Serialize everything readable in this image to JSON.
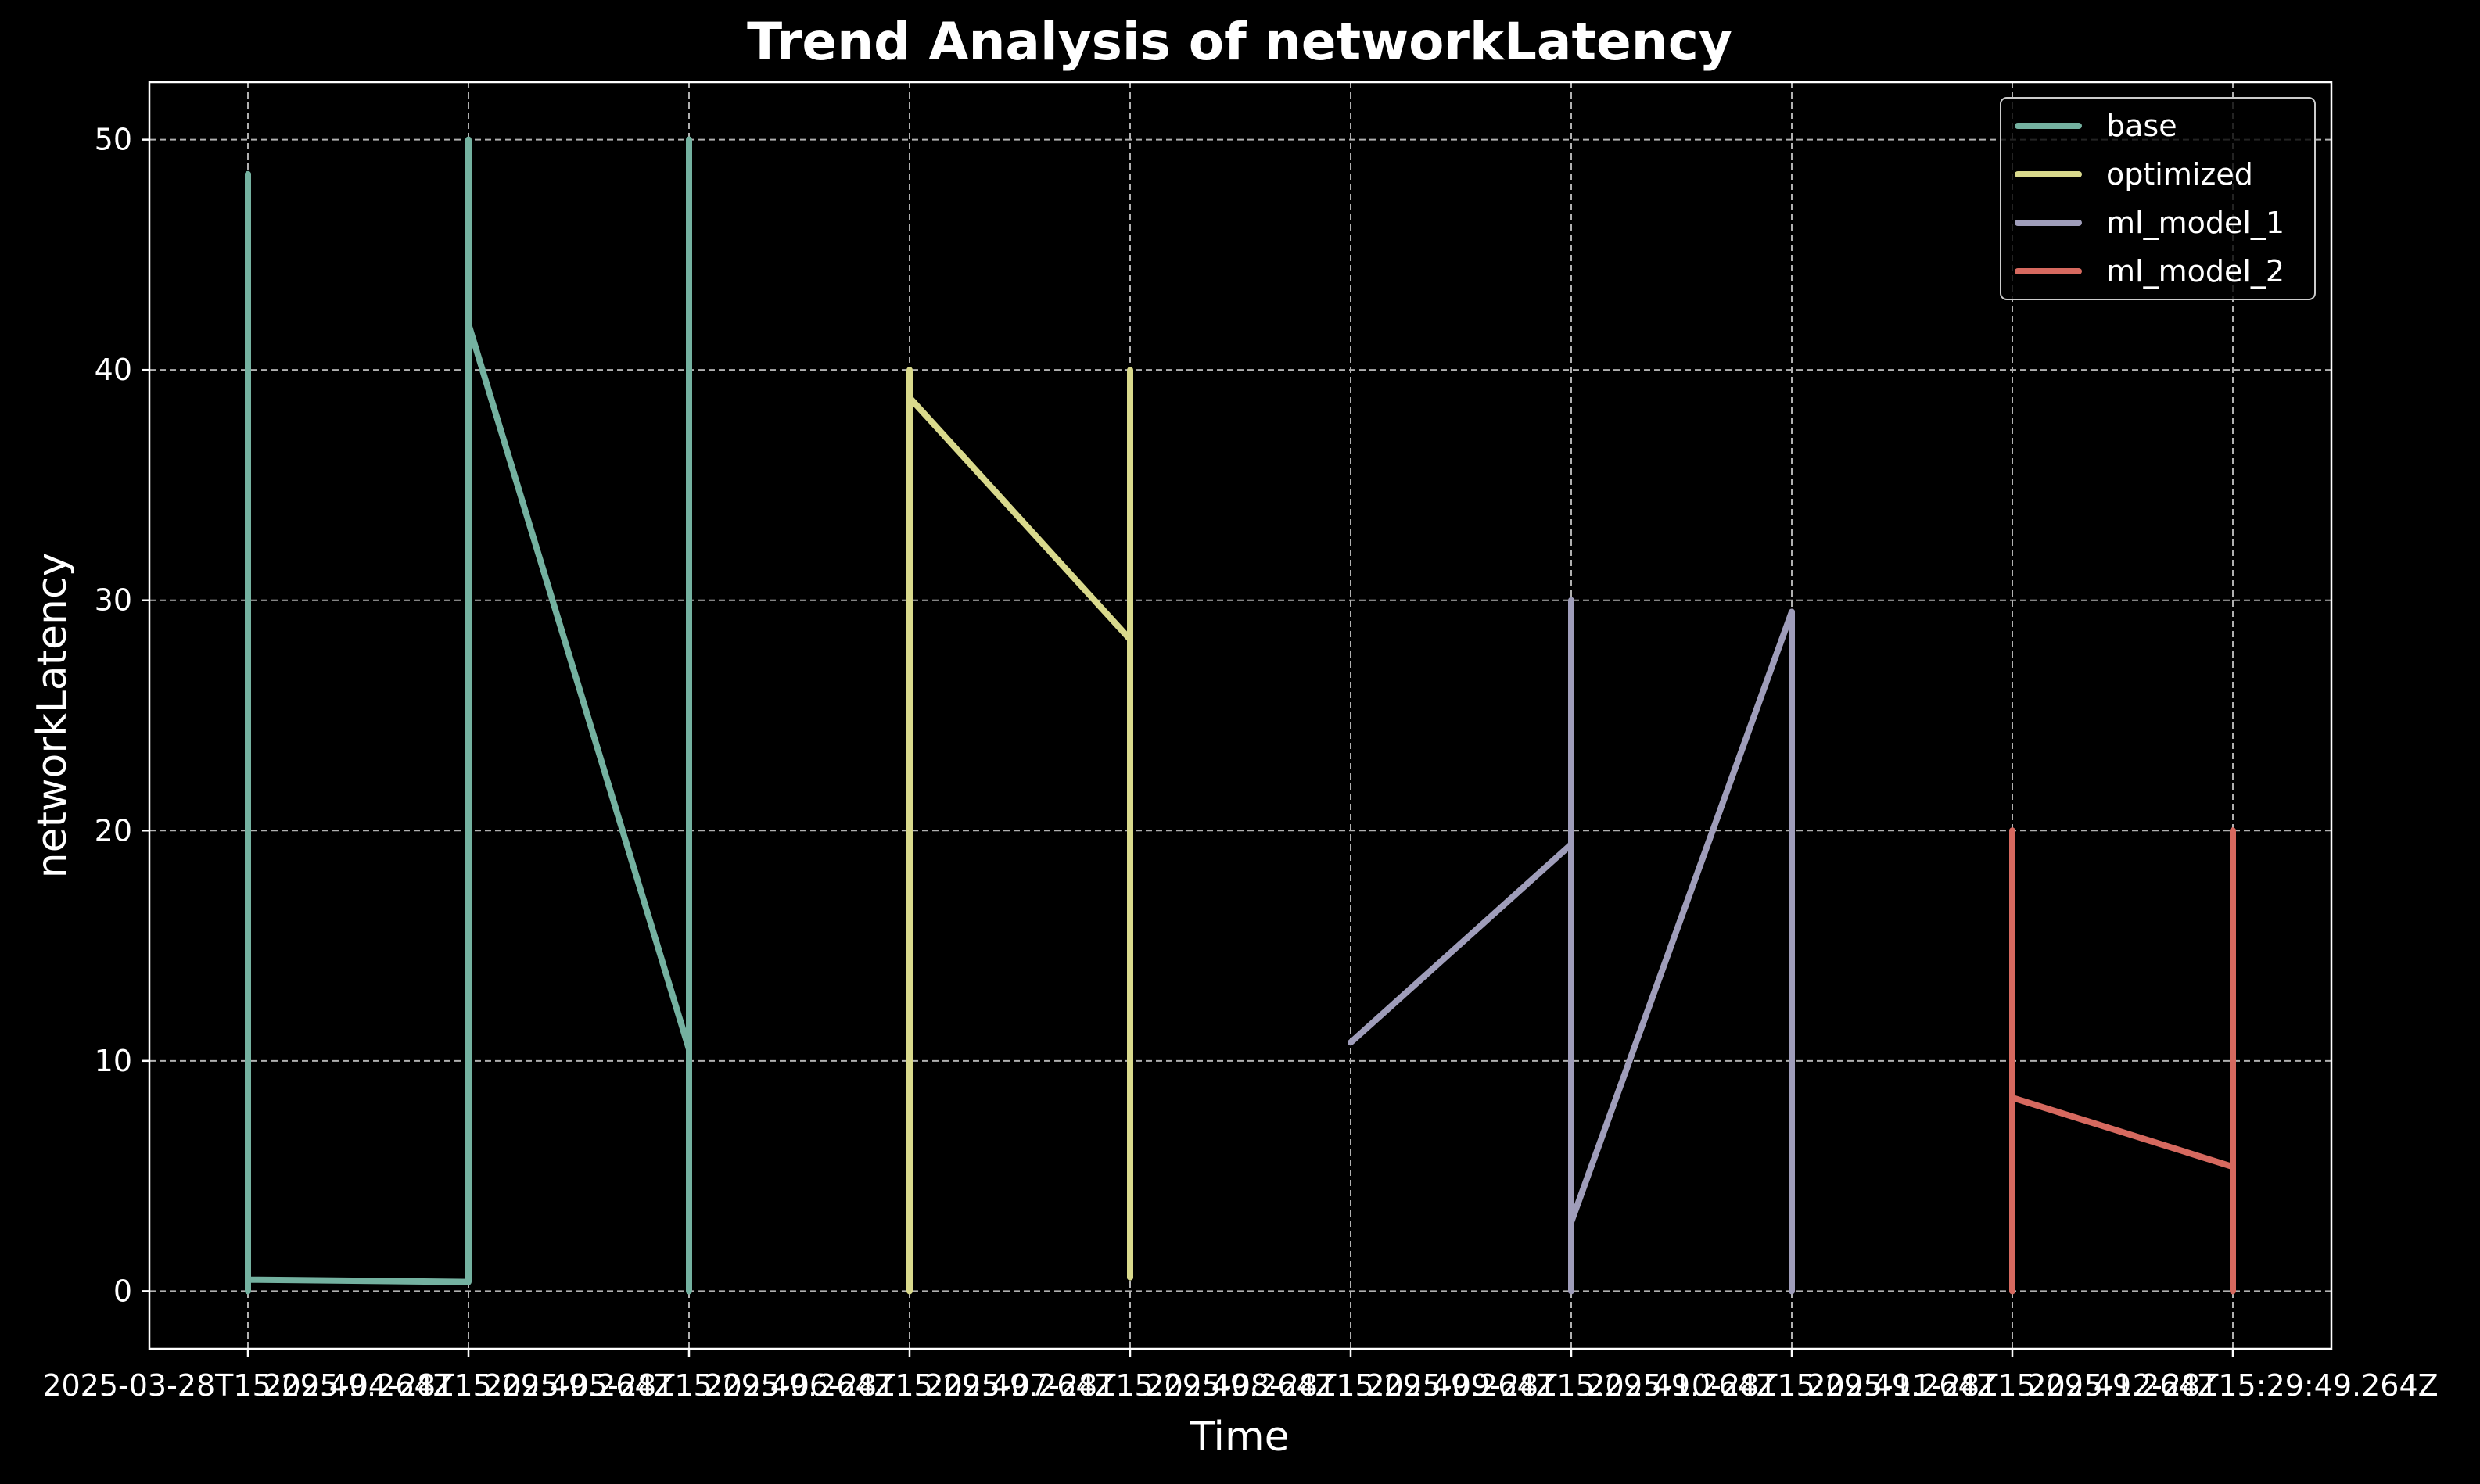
{
  "colors": {
    "background": "#000000",
    "foreground": "#ffffff",
    "grid": "#b0b0b0"
  },
  "chart_data": {
    "type": "line",
    "title": "Trend Analysis of networkLatency",
    "xlabel": "Time",
    "ylabel": "networkLatency",
    "x_ticks": [
      "2025-03-28T15:29:49.264Z",
      "2025-04-28T15:29:49.264Z",
      "2025-05-28T15:29:49.264Z",
      "2025-06-28T15:29:49.264Z",
      "2025-07-28T15:29:49.264Z",
      "2025-08-28T15:29:49.264Z",
      "2025-09-28T15:29:49.264Z",
      "2025-10-28T15:29:49.264Z",
      "2025-11-28T15:29:49.264Z",
      "2025-12-28T15:29:49.264Z"
    ],
    "ylim": [
      -2.5,
      52.5
    ],
    "y_ticks": [
      0,
      10,
      20,
      30,
      40,
      50
    ],
    "grid": true,
    "legend_position": "top-right",
    "series": [
      {
        "name": "base",
        "color": "#74b1a0",
        "points": [
          {
            "x": "2025-03-28T15:29:49.264Z",
            "y": 48.5
          },
          {
            "x": "2025-03-28T15:29:49.264Z",
            "y": 0.0
          },
          {
            "x": "2025-03-28T15:29:49.264Z",
            "y": 0.5
          },
          {
            "x": "2025-04-28T15:29:49.264Z",
            "y": 0.4
          },
          {
            "x": "2025-04-28T15:29:49.264Z",
            "y": 50.0
          },
          {
            "x": "2025-04-28T15:29:49.264Z",
            "y": 42.0
          },
          {
            "x": "2025-05-28T15:29:49.264Z",
            "y": 10.5
          },
          {
            "x": "2025-05-28T15:29:49.264Z",
            "y": 50.0
          },
          {
            "x": "2025-05-28T15:29:49.264Z",
            "y": 0.0
          }
        ]
      },
      {
        "name": "optimized",
        "color": "#d9d98c",
        "points": [
          {
            "x": "2025-06-28T15:29:49.264Z",
            "y": 0.0
          },
          {
            "x": "2025-06-28T15:29:49.264Z",
            "y": 40.0
          },
          {
            "x": "2025-06-28T15:29:49.264Z",
            "y": 38.8
          },
          {
            "x": "2025-07-28T15:29:49.264Z",
            "y": 28.3
          },
          {
            "x": "2025-07-28T15:29:49.264Z",
            "y": 0.6
          },
          {
            "x": "2025-07-28T15:29:49.264Z",
            "y": 40.0
          }
        ]
      },
      {
        "name": "ml_model_1",
        "color": "#9f9dba",
        "points": [
          {
            "x": "2025-08-28T15:29:49.264Z",
            "y": 10.8
          },
          {
            "x": "2025-09-28T15:29:49.264Z",
            "y": 19.4
          },
          {
            "x": "2025-09-28T15:29:49.264Z",
            "y": 30.0
          },
          {
            "x": "2025-09-28T15:29:49.264Z",
            "y": 0.0
          },
          {
            "x": "2025-09-28T15:29:49.264Z",
            "y": 3.0
          },
          {
            "x": "2025-10-28T15:29:49.264Z",
            "y": 29.5
          },
          {
            "x": "2025-10-28T15:29:49.264Z",
            "y": 0.0
          }
        ]
      },
      {
        "name": "ml_model_2",
        "color": "#d6695f",
        "points": [
          {
            "x": "2025-11-28T15:29:49.264Z",
            "y": 20.0
          },
          {
            "x": "2025-11-28T15:29:49.264Z",
            "y": 0.0
          },
          {
            "x": "2025-11-28T15:29:49.264Z",
            "y": 8.4
          },
          {
            "x": "2025-12-28T15:29:49.264Z",
            "y": 5.4
          },
          {
            "x": "2025-12-28T15:29:49.264Z",
            "y": 20.0
          },
          {
            "x": "2025-12-28T15:29:49.264Z",
            "y": 0.0
          }
        ]
      }
    ]
  }
}
